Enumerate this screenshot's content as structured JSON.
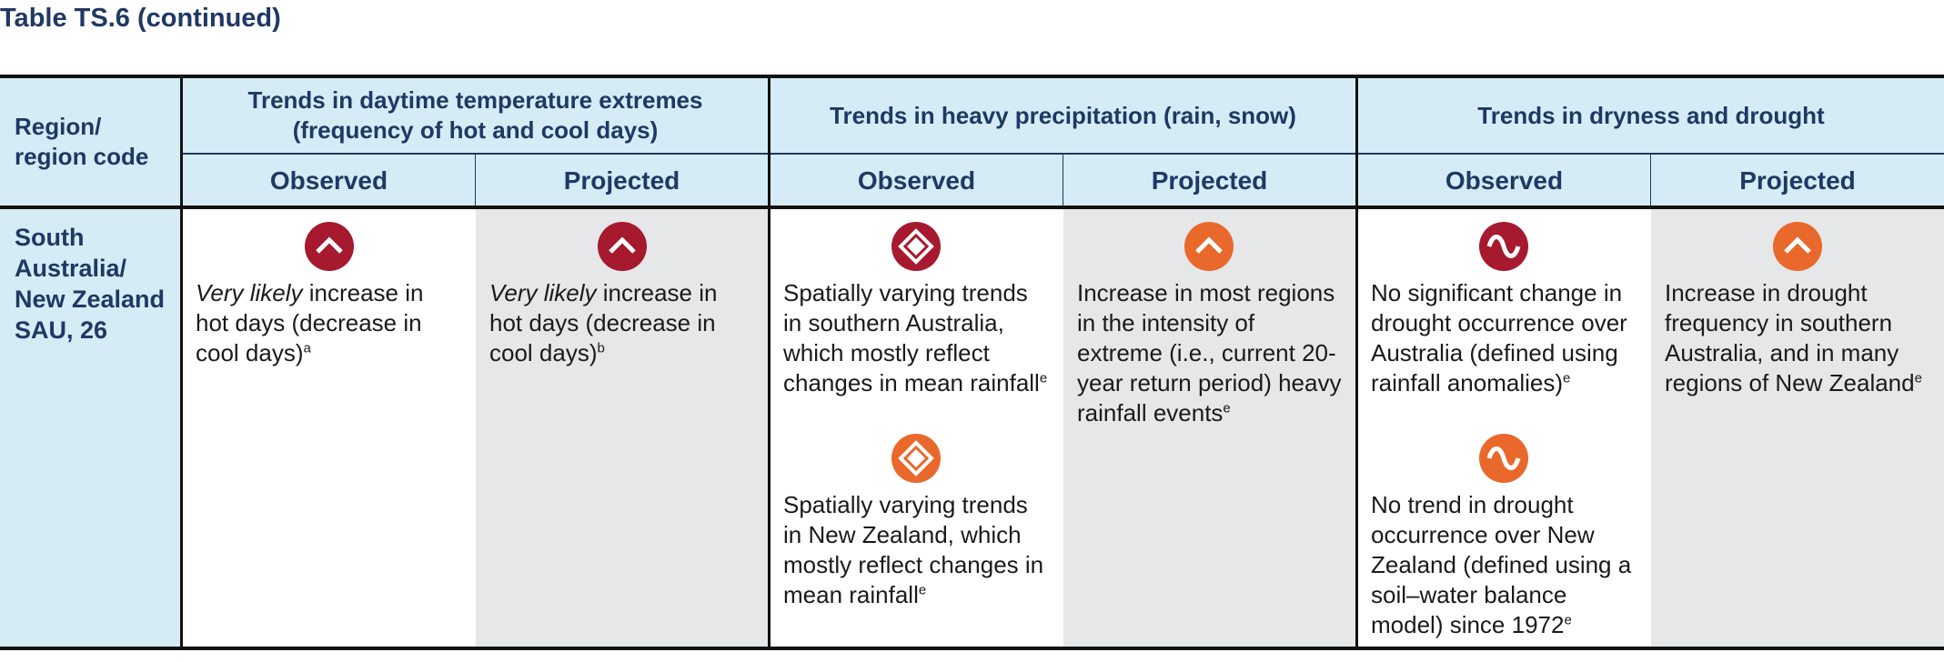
{
  "caption": "Table TS.6 (continued)",
  "colors": {
    "header_bg": "#d5ecf6",
    "shaded_cell": "#e6e7e8",
    "dark_red": "#a6192e",
    "orange": "#e8692b",
    "heading_text": "#1f3864"
  },
  "header": {
    "region_label": "Region/ region code",
    "groups": [
      {
        "title": "Trends in daytime temperature extremes (frequency of hot and cool days)"
      },
      {
        "title": "Trends in heavy precipitation (rain, snow)"
      },
      {
        "title": "Trends in dryness and drought"
      }
    ],
    "observed": "Observed",
    "projected": "Projected"
  },
  "row": {
    "region": "South Australia/ New Zealand SAU, 26",
    "temp_obs": {
      "icon": "up-chevron-icon",
      "color": "dark-red",
      "italic": "Very likely",
      "text": " increase in hot days (decrease in cool days)",
      "note": "a"
    },
    "temp_proj": {
      "icon": "up-chevron-icon",
      "color": "dark-red",
      "italic": "Very likely",
      "text": " increase in hot days (decrease in cool days)",
      "note": "b"
    },
    "precip_obs_1": {
      "icon": "up-down-chevron-icon",
      "color": "dark-red",
      "text": "Spatially varying trends in southern Australia, which mostly reflect changes in mean rainfall",
      "note": "e"
    },
    "precip_obs_2": {
      "icon": "up-down-chevron-icon",
      "color": "orange",
      "text": "Spatially varying trends in New Zealand, which mostly reflect changes in mean rainfall",
      "note": "e"
    },
    "precip_proj": {
      "icon": "up-chevron-icon",
      "color": "orange",
      "text": "Increase in most regions in the intensity of extreme (i.e., current 20-year return period) heavy rainfall events",
      "note": "e"
    },
    "drought_obs_1": {
      "icon": "wave-icon",
      "color": "dark-red",
      "text": "No significant change in drought occurrence over Australia (defined using rainfall anomalies)",
      "note": "e"
    },
    "drought_obs_2": {
      "icon": "wave-icon",
      "color": "orange",
      "text": "No trend in drought occurrence over New Zealand (defined using a soil–water balance model) since 1972",
      "note": "e"
    },
    "drought_proj": {
      "icon": "up-chevron-icon",
      "color": "orange",
      "text": "Increase in drought frequency in southern Australia, and in many regions of New Zealand",
      "note": "e"
    }
  }
}
